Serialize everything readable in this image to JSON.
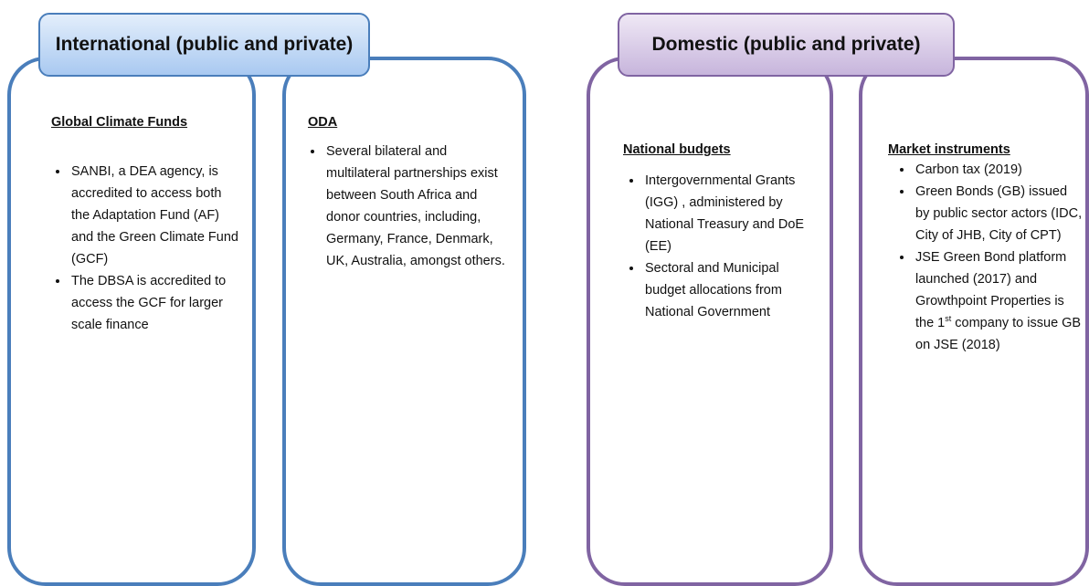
{
  "groups": [
    {
      "title": "International (public and private)",
      "columns": [
        {
          "heading": "Global Climate Funds",
          "bullets": [
            {
              "parts": [
                "SANBI, a DEA agency, is accredited to access both the Adaptation Fund (AF) and the Green Climate Fund (GCF)"
              ]
            },
            {
              "parts": [
                "The DBSA is accredited to access the GCF for larger scale finance"
              ]
            }
          ]
        },
        {
          "heading": "ODA",
          "bullets": [
            {
              "parts": [
                "Several bilateral and multilateral partnerships exist between South Africa and donor countries, including, Germany, France, Denmark, UK, Australia, amongst others."
              ]
            }
          ]
        }
      ]
    },
    {
      "title": "Domestic (public and private)",
      "columns": [
        {
          "heading": "National budgets",
          "bullets": [
            {
              "parts": [
                "Intergovernmental Grants (IGG) , administered by National Treasury and DoE (EE)"
              ]
            },
            {
              "parts": [
                "Sectoral and Municipal budget allocations from National Government"
              ]
            }
          ]
        },
        {
          "heading": "Market instruments",
          "bullets": [
            {
              "parts": [
                "Carbon tax (2019)"
              ]
            },
            {
              "parts": [
                "Green Bonds (GB) issued by public sector actors (IDC, City of JHB, City of CPT)"
              ]
            },
            {
              "parts": [
                "JSE Green Bond platform launched (2017) and Growthpoint Properties is the 1",
                "st",
                " company to issue GB on JSE (2018)"
              ]
            }
          ]
        }
      ]
    }
  ]
}
